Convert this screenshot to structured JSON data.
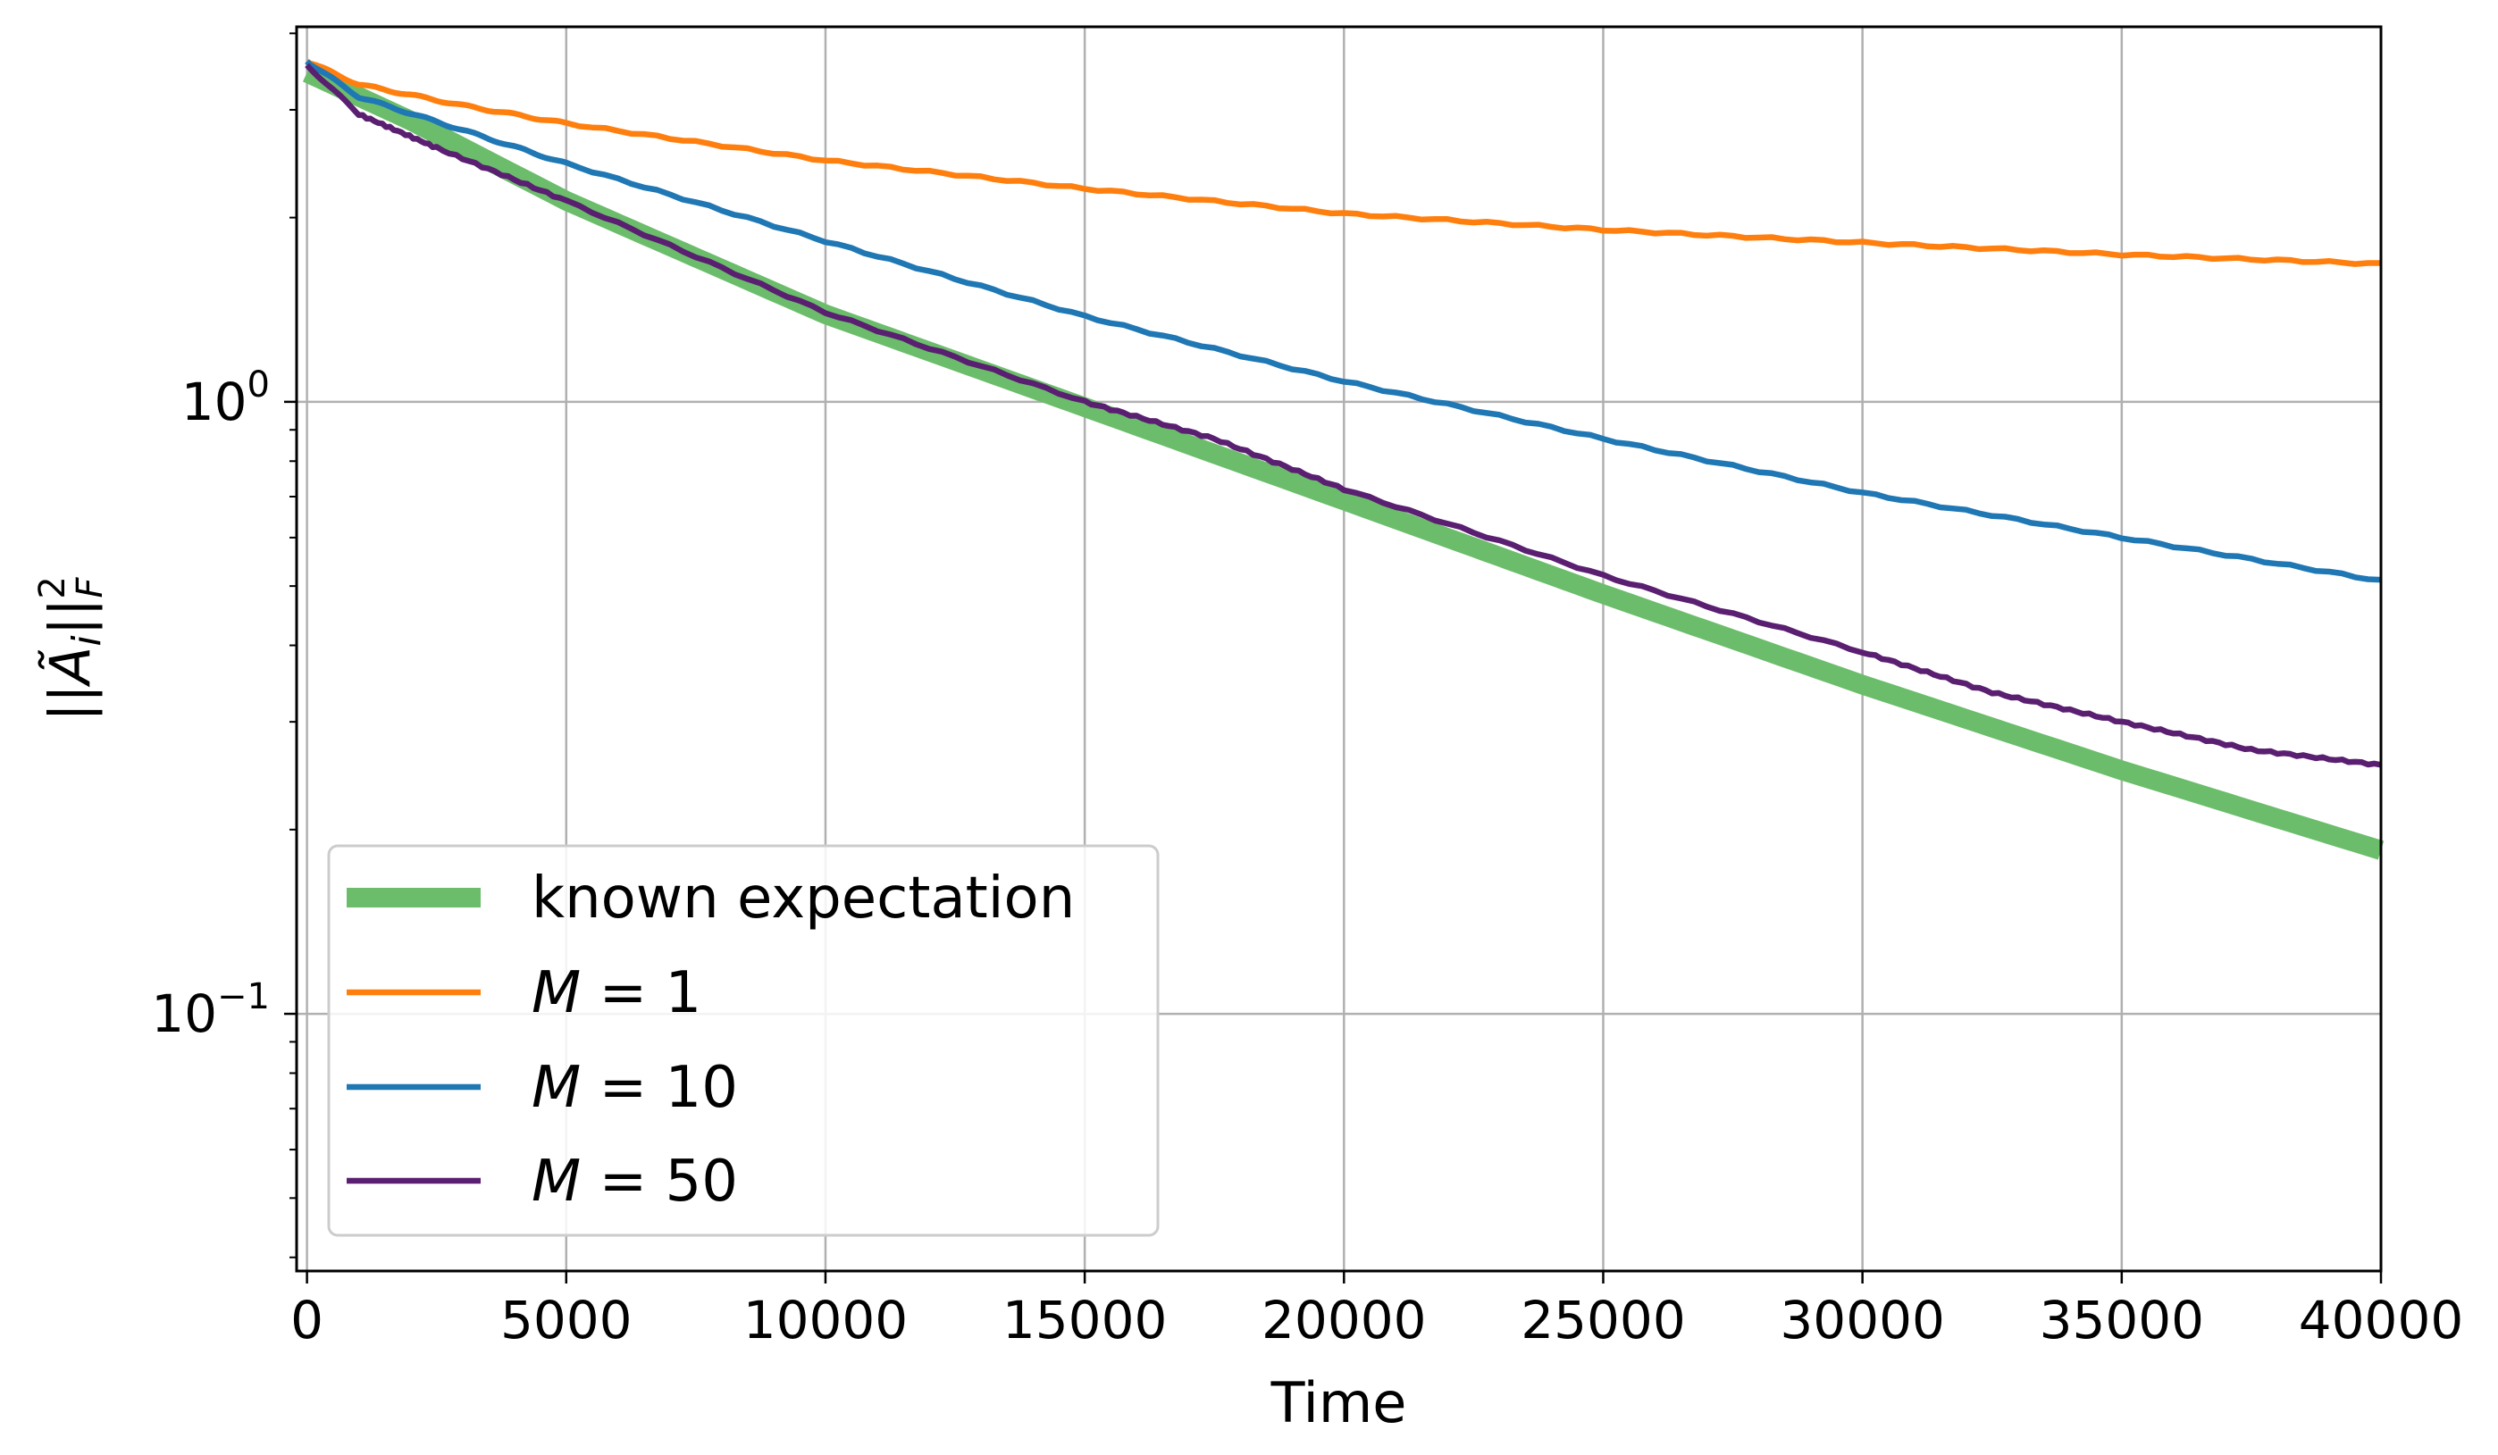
{
  "chart_data": {
    "type": "line",
    "xlabel": "Time",
    "ylabel": "||Ã_i||_F^2",
    "ylabel_parts": {
      "pre": "||",
      "main": "Ã",
      "sub_i": "i",
      "mid": "||",
      "sub_F": "F",
      "sup": "2"
    },
    "xlim": [
      -200,
      40000
    ],
    "ylim": [
      0.038,
      4.1
    ],
    "yscale": "log",
    "grid": true,
    "legend_position": "lower-left",
    "x_ticks": [
      0,
      5000,
      10000,
      15000,
      20000,
      25000,
      30000,
      35000,
      40000
    ],
    "x_tick_labels": [
      "0",
      "5000",
      "10000",
      "15000",
      "20000",
      "25000",
      "30000",
      "35000",
      "40000"
    ],
    "y_ticks": [
      {
        "value": 1,
        "base": "10",
        "exp": "0"
      },
      {
        "value": 0.1,
        "base": "10",
        "exp": "−1"
      }
    ],
    "series": [
      {
        "name": "known expectation",
        "label_parts": {
          "text": "known expectation"
        },
        "color": "#6bbd6b",
        "x": [
          0,
          2000,
          5000,
          10000,
          15000,
          20000,
          25000,
          30000,
          35000,
          40000
        ],
        "y": [
          3.45,
          2.88,
          2.13,
          1.39,
          0.98,
          0.69,
          0.485,
          0.345,
          0.25,
          0.185
        ]
      },
      {
        "name": "M = 1",
        "label_parts": {
          "var": "M",
          "eq": " = ",
          "val": "1"
        },
        "color": "#ff7f0e",
        "x": [
          0,
          1000,
          3000,
          5000,
          10000,
          15000,
          20000,
          25000,
          30000,
          35000,
          40000
        ],
        "y": [
          3.6,
          3.3,
          3.05,
          2.85,
          2.48,
          2.23,
          2.03,
          1.91,
          1.82,
          1.74,
          1.68
        ]
      },
      {
        "name": "M = 10",
        "label_parts": {
          "var": "M",
          "eq": " = ",
          "val": "10"
        },
        "color": "#1f77b4",
        "x": [
          0,
          1000,
          3000,
          5000,
          10000,
          15000,
          20000,
          25000,
          30000,
          35000,
          40000
        ],
        "y": [
          3.6,
          3.15,
          2.78,
          2.45,
          1.83,
          1.38,
          1.08,
          0.87,
          0.71,
          0.6,
          0.51
        ]
      },
      {
        "name": "M = 50",
        "label_parts": {
          "var": "M",
          "eq": " = ",
          "val": "50"
        },
        "color": "#5a1f71",
        "x": [
          0,
          1000,
          2500,
          5000,
          10000,
          15000,
          17500,
          20000,
          25000,
          30000,
          32500,
          35000,
          37500,
          40000
        ],
        "y": [
          3.55,
          2.95,
          2.6,
          2.13,
          1.4,
          1.0,
          0.87,
          0.72,
          0.52,
          0.39,
          0.335,
          0.3,
          0.27,
          0.255
        ]
      }
    ]
  }
}
